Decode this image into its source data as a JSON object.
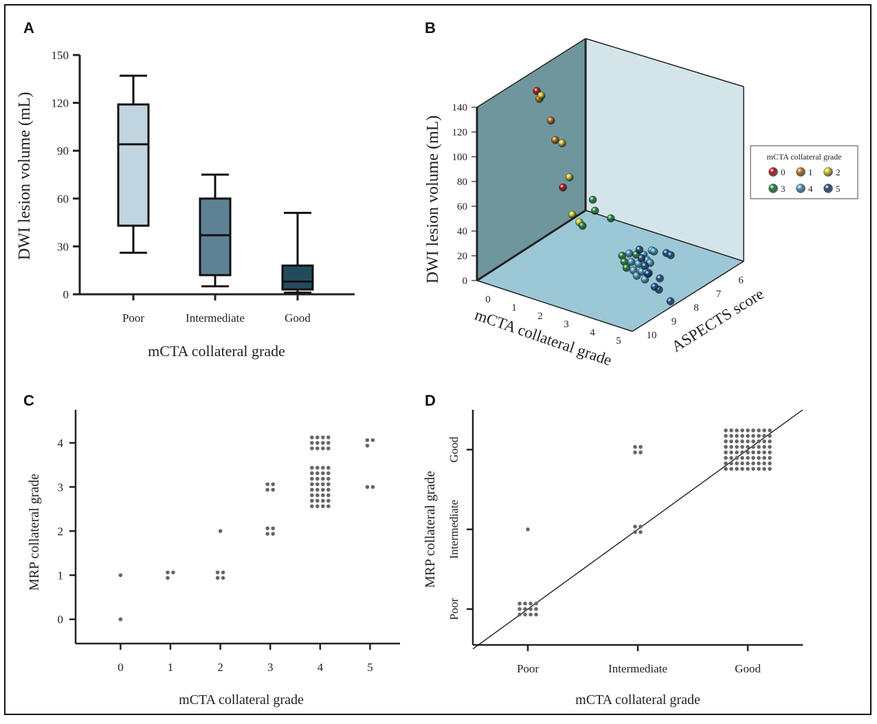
{
  "colors": {
    "box_poor": "#c0d5df",
    "box_intermediate": "#5e8195",
    "box_good": "#234b5e",
    "wall_left": "#6f969d",
    "wall_back": "#d4e5ea",
    "floor": "#9cc7d6",
    "dot": "#666666"
  },
  "panels": [
    {
      "letter": "A",
      "chart_data": {
        "type": "box",
        "categories": [
          "Poor",
          "Intermediate",
          "Good"
        ],
        "xlabel": "mCTA collateral grade",
        "ylabel": "DWI lesion volume (mL)",
        "ylim": [
          0,
          150
        ],
        "yticks": [
          "0",
          "30",
          "60",
          "90",
          "120",
          "150"
        ],
        "boxes": [
          {
            "whisker_low": 26,
            "q1": 43,
            "median": 94,
            "q3": 119,
            "whisker_high": 137
          },
          {
            "whisker_low": 5,
            "q1": 12,
            "median": 37,
            "q3": 60,
            "whisker_high": 75
          },
          {
            "whisker_low": 1,
            "q1": 3,
            "median": 8,
            "q3": 18,
            "whisker_high": 51
          }
        ]
      }
    },
    {
      "letter": "B",
      "chart_data": {
        "type": "scatter3d",
        "xlabel": "mCTA collateral grade",
        "ylabel": "ASPECTS score",
        "zlabel": "DWI lesion volume (mL)",
        "xticks": [
          "0",
          "1",
          "2",
          "3",
          "4",
          "5"
        ],
        "yticks": [
          "6",
          "7",
          "8",
          "9",
          "10"
        ],
        "zticks": [
          "0",
          "20",
          "40",
          "60",
          "80",
          "100",
          "120",
          "140"
        ],
        "legend_title": "mCTA collateral grade",
        "legend_placement": "right",
        "legend": [
          {
            "label": "0",
            "color": "#c01818"
          },
          {
            "label": "1",
            "color": "#c8741a"
          },
          {
            "label": "2",
            "color": "#d8c82a"
          },
          {
            "label": "3",
            "color": "#1f8a3a"
          },
          {
            "label": "4",
            "color": "#4a9fc8"
          },
          {
            "label": "5",
            "color": "#1d4f8c"
          }
        ],
        "points_note": "",
        "points": [
          {
            "grade": 0,
            "u": 0.05,
            "v": 0.48,
            "volume": 128
          },
          {
            "grade": 0,
            "u": 0.12,
            "v": 0.62,
            "volume": 45
          },
          {
            "grade": 1,
            "u": 0.08,
            "v": 0.46,
            "volume": 124
          },
          {
            "grade": 1,
            "u": 0.42,
            "v": 0.08,
            "volume": 142
          },
          {
            "grade": 1,
            "u": 0.42,
            "v": 0.12,
            "volume": 124
          },
          {
            "grade": 2,
            "u": 0.1,
            "v": 0.45,
            "volume": 128
          },
          {
            "grade": 2,
            "u": 0.52,
            "v": 0.04,
            "volume": 130
          },
          {
            "grade": 2,
            "u": 0.4,
            "v": 0.28,
            "volume": 84
          },
          {
            "grade": 2,
            "u": 0.3,
            "v": 0.45,
            "volume": 40
          },
          {
            "grade": 2,
            "u": 0.38,
            "v": 0.4,
            "volume": 40
          },
          {
            "grade": 3,
            "u": 0.55,
            "v": 0.28,
            "volume": 72
          },
          {
            "grade": 3,
            "u": 0.55,
            "v": 0.3,
            "volume": 62
          },
          {
            "grade": 3,
            "u": 0.75,
            "v": 0.16,
            "volume": 72
          },
          {
            "grade": 3,
            "u": 0.4,
            "v": 0.4,
            "volume": 38
          },
          {
            "grade": 3,
            "u": 0.62,
            "v": 0.45,
            "volume": 20
          },
          {
            "grade": 3,
            "u": 0.62,
            "v": 0.47,
            "volume": 14
          },
          {
            "grade": 3,
            "u": 0.62,
            "v": 0.49,
            "volume": 8
          },
          {
            "grade": 3,
            "u": 0.55,
            "v": 0.68,
            "volume": 5
          },
          {
            "grade": 4,
            "u": 0.7,
            "v": 0.4,
            "volume": 28
          },
          {
            "grade": 4,
            "u": 0.7,
            "v": 0.42,
            "volume": 20
          },
          {
            "grade": 4,
            "u": 0.7,
            "v": 0.44,
            "volume": 12
          },
          {
            "grade": 4,
            "u": 0.7,
            "v": 0.47,
            "volume": 6
          },
          {
            "grade": 4,
            "u": 0.76,
            "v": 0.4,
            "volume": 22
          },
          {
            "grade": 4,
            "u": 0.76,
            "v": 0.43,
            "volume": 14
          },
          {
            "grade": 4,
            "u": 0.76,
            "v": 0.46,
            "volume": 6
          },
          {
            "grade": 4,
            "u": 0.64,
            "v": 0.62,
            "volume": 12
          },
          {
            "grade": 4,
            "u": 0.64,
            "v": 0.65,
            "volume": 6
          },
          {
            "grade": 4,
            "u": 0.64,
            "v": 0.68,
            "volume": 2
          },
          {
            "grade": 4,
            "u": 0.7,
            "v": 0.56,
            "volume": 4
          },
          {
            "grade": 4,
            "u": 0.7,
            "v": 0.58,
            "volume": 2
          },
          {
            "grade": 4,
            "u": 0.58,
            "v": 0.78,
            "volume": 4
          },
          {
            "grade": 4,
            "u": 0.58,
            "v": 0.8,
            "volume": 2
          },
          {
            "grade": 5,
            "u": 0.85,
            "v": 0.28,
            "volume": 44
          },
          {
            "grade": 5,
            "u": 0.85,
            "v": 0.3,
            "volume": 36
          },
          {
            "grade": 5,
            "u": 0.85,
            "v": 0.33,
            "volume": 28
          },
          {
            "grade": 5,
            "u": 0.85,
            "v": 0.36,
            "volume": 20
          },
          {
            "grade": 5,
            "u": 0.92,
            "v": 0.36,
            "volume": 10
          },
          {
            "grade": 5,
            "u": 0.85,
            "v": 0.42,
            "volume": 6
          },
          {
            "grade": 5,
            "u": 0.98,
            "v": 0.38,
            "volume": 2
          },
          {
            "grade": 5,
            "u": 0.8,
            "v": 0.54,
            "volume": 4
          },
          {
            "grade": 5,
            "u": 0.66,
            "v": 0.8,
            "volume": 4
          },
          {
            "grade": 5,
            "u": 0.66,
            "v": 0.84,
            "volume": 0
          }
        ]
      }
    },
    {
      "letter": "C",
      "chart_data": {
        "type": "scatter",
        "xlabel": "mCTA collateral grade",
        "ylabel": "MRP collateral grade",
        "xticks": [
          "0",
          "1",
          "2",
          "3",
          "4",
          "5"
        ],
        "yticks": [
          "0",
          "1",
          "2",
          "3",
          "4"
        ],
        "xlim": [
          -0.9,
          5.6
        ],
        "ylim": [
          -0.55,
          4.75
        ],
        "counts": [
          {
            "x": 0,
            "y": 0,
            "n": 1
          },
          {
            "x": 0,
            "y": 1,
            "n": 1
          },
          {
            "x": 1,
            "y": 1,
            "n": 3
          },
          {
            "x": 2,
            "y": 1,
            "n": 4
          },
          {
            "x": 2,
            "y": 2,
            "n": 1
          },
          {
            "x": 3,
            "y": 2,
            "n": 4
          },
          {
            "x": 3,
            "y": 3,
            "n": 4
          },
          {
            "x": 4,
            "y": 3,
            "n": 32
          },
          {
            "x": 4,
            "y": 4,
            "n": 12
          },
          {
            "x": 5,
            "y": 3,
            "n": 2
          },
          {
            "x": 5,
            "y": 4,
            "n": 3
          }
        ]
      }
    },
    {
      "letter": "D",
      "chart_data": {
        "type": "scatter",
        "xlabel": "mCTA collateral grade",
        "ylabel": "MRP collateral grade",
        "xticks": [
          "Poor",
          "Intermediate",
          "Good"
        ],
        "yticks": [
          "Poor",
          "Intermediate",
          "Good"
        ],
        "xlim": [
          -0.5,
          2.5
        ],
        "ylim": [
          -0.45,
          2.5
        ],
        "reference_line": "identity",
        "counts": [
          {
            "x": 0,
            "y": 0,
            "n": 12
          },
          {
            "x": 0,
            "y": 1,
            "n": 1
          },
          {
            "x": 1,
            "y": 1,
            "n": 4
          },
          {
            "x": 1,
            "y": 2,
            "n": 4
          },
          {
            "x": 2,
            "y": 2,
            "n": 72
          }
        ]
      }
    }
  ]
}
